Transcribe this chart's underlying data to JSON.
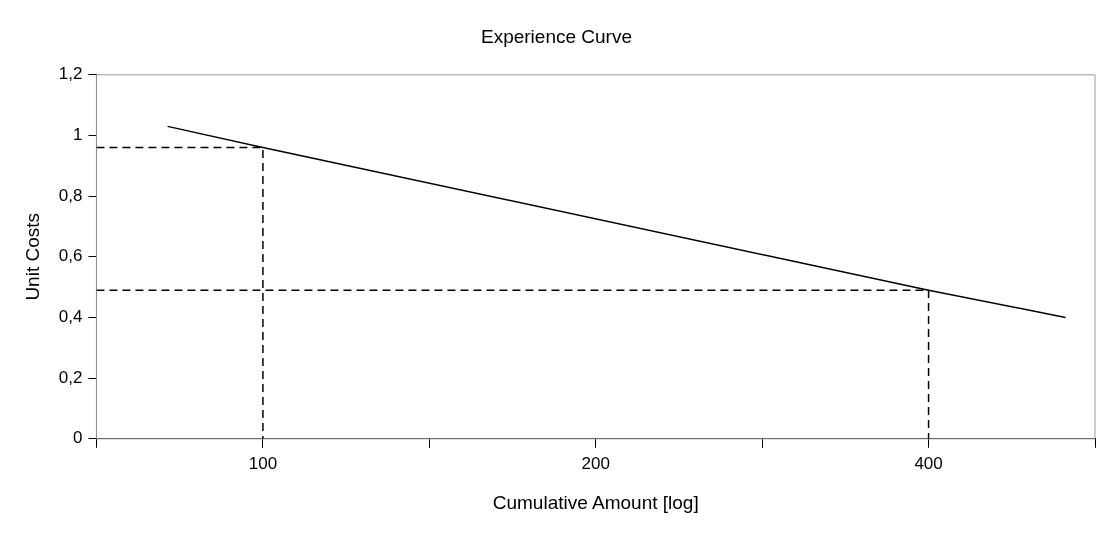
{
  "chart_data": {
    "type": "line",
    "title": "Experience Curve",
    "xlabel": "Cumulative Amount [log]",
    "ylabel": "Unit Costs",
    "log": "x",
    "grid": false,
    "legend": false,
    "marker": "none",
    "xlim": [
      70.7,
      565.7
    ],
    "xticks": [
      {
        "value": 70.7,
        "label": null
      },
      100,
      {
        "value": 141.4,
        "label": null
      },
      200,
      {
        "value": 282.8,
        "label": null
      },
      400,
      {
        "value": 565.7,
        "label": null
      }
    ],
    "ylim": [
      0,
      1.2
    ],
    "yticks": [
      0,
      {
        "value": 0.2,
        "label": "0,2"
      },
      {
        "value": 0.4,
        "label": "0,4"
      },
      {
        "value": 0.6,
        "label": "0,6"
      },
      {
        "value": 0.8,
        "label": "0,8"
      },
      1,
      {
        "value": 1.2,
        "label": "1,2"
      }
    ],
    "series": [
      {
        "color": "#000000",
        "line_style": "solid",
        "x": [
          82,
          100,
          400,
          532
        ],
        "values": [
          1.03,
          0.96,
          0.49,
          0.4
        ]
      },
      {
        "color": "#000000",
        "line_style": "dashed",
        "x": [
          70.7,
          100,
          100
        ],
        "values": [
          0.96,
          0.96,
          0
        ]
      },
      {
        "color": "#000000",
        "line_style": "dashed",
        "x": [
          70.7,
          400,
          400
        ],
        "values": [
          0.49,
          0.49,
          0
        ]
      }
    ]
  }
}
